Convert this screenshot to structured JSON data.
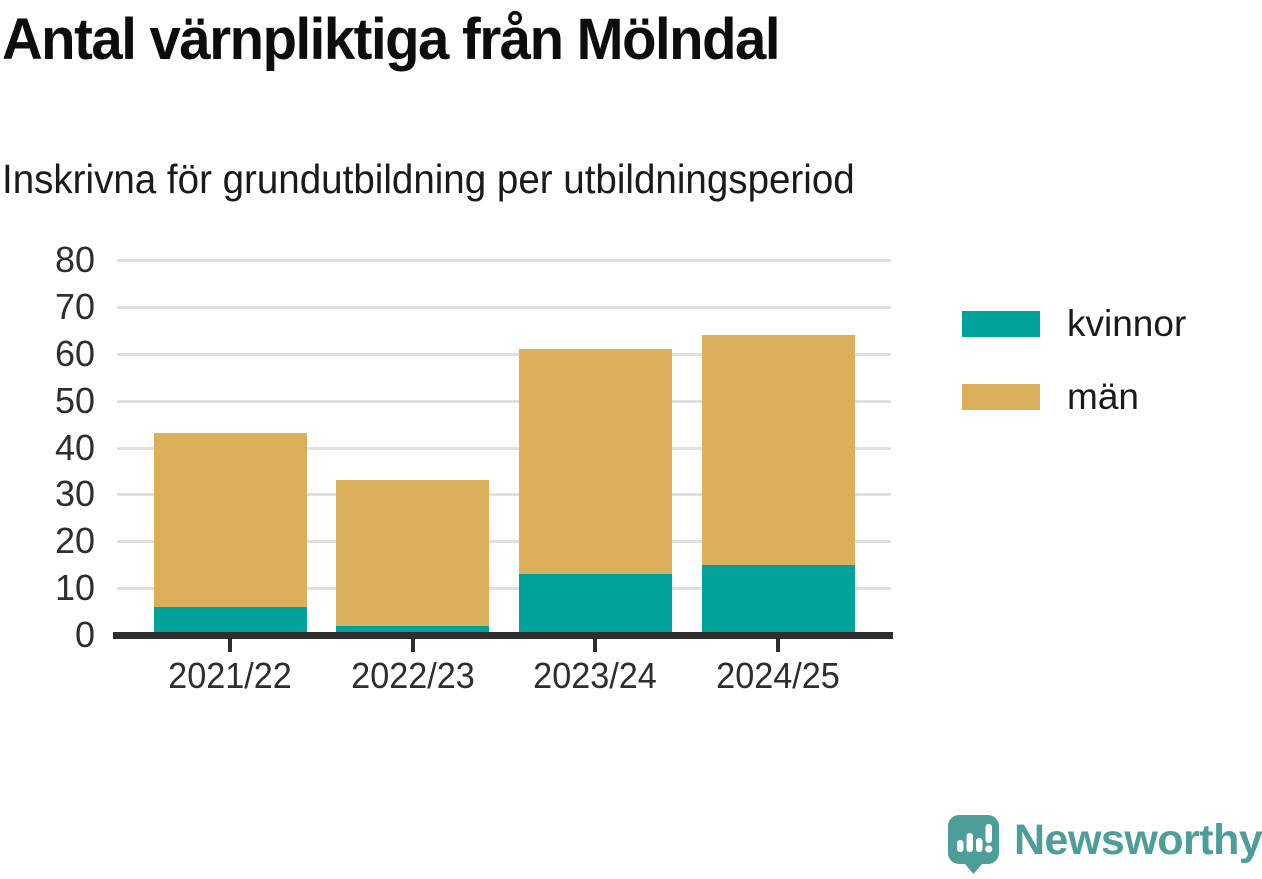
{
  "title": "Antal värnpliktiga från Mölndal",
  "subtitle": "Inskrivna för grundutbildning per utbildningsperiod",
  "chart_data": {
    "type": "bar",
    "stacked": true,
    "title": "Antal värnpliktiga från Mölndal",
    "subtitle": "Inskrivna för grundutbildning per utbildningsperiod",
    "categories": [
      "2021/22",
      "2022/23",
      "2023/24",
      "2024/25"
    ],
    "series": [
      {
        "name": "kvinnor",
        "values": [
          6,
          2,
          13,
          15
        ],
        "color": "#00a29a"
      },
      {
        "name": "män",
        "values": [
          37,
          31,
          48,
          49
        ],
        "color": "#dcaf5b"
      }
    ],
    "stack_totals": [
      43,
      33,
      61,
      64
    ],
    "xlabel": "",
    "ylabel": "",
    "ylim": [
      0,
      80
    ],
    "yticks": [
      0,
      10,
      20,
      30,
      40,
      50,
      60,
      70,
      80
    ],
    "grid": true,
    "gridline_color": "#e0e0e0",
    "axis_color": "#2d2d2d",
    "legend_position": "right"
  },
  "legend": {
    "items": [
      {
        "label": "kvinnor",
        "color": "#00a29a"
      },
      {
        "label": "män",
        "color": "#dcaf5b"
      }
    ]
  },
  "branding": {
    "logo_text": "Newsworthy",
    "brand_color": "#4d9e98"
  }
}
